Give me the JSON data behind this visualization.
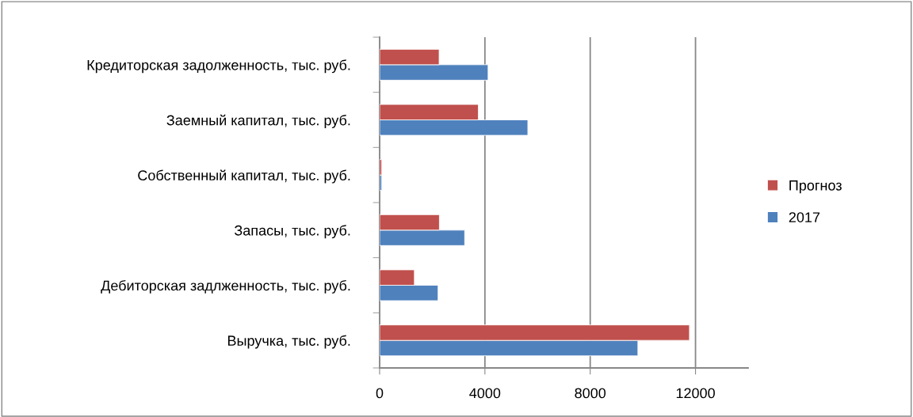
{
  "chart_data": {
    "type": "bar",
    "orientation": "horizontal",
    "categories": [
      "Кредиторская задолженность, тыс. руб.",
      "Заемный капитал, тыс. руб.",
      "Собственный капитал, тыс. руб.",
      "Запасы, тыс. руб.",
      "Дебиторская задлженность, тыс. руб.",
      "Выручка, тыс. руб."
    ],
    "series": [
      {
        "name": "2017",
        "color": "#4f81bd",
        "values": [
          4120,
          5630,
          80,
          3230,
          2220,
          9810
        ]
      },
      {
        "name": "Прогноз",
        "color": "#c0504d",
        "values": [
          2260,
          3750,
          80,
          2270,
          1320,
          11770
        ]
      }
    ],
    "xlim": [
      0,
      14000
    ],
    "xticks": [
      0,
      4000,
      8000,
      12000
    ],
    "grid": "x",
    "legend": "right"
  }
}
